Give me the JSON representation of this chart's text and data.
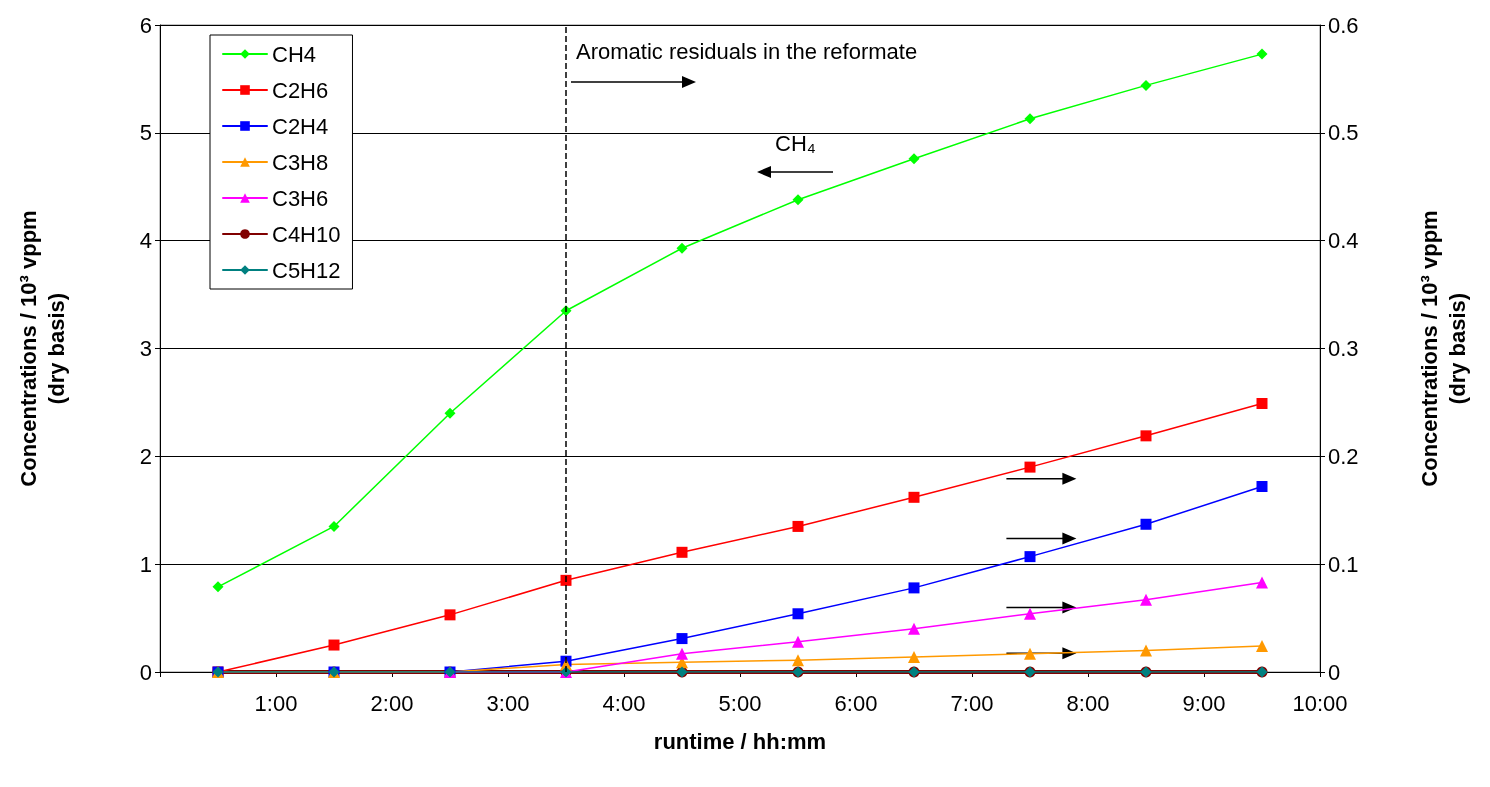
{
  "chart_data": {
    "type": "line",
    "xlabel": "runtime / hh:mm",
    "ylabel": "Concentrations / 10³ vppm\n(dry basis)",
    "y2label": "Concentrations / 10³ vppm\n(dry basis)",
    "x": [
      0.5,
      1.5,
      2.5,
      3.5,
      4.5,
      5.5,
      6.5,
      7.5,
      8.5,
      9.5
    ],
    "xlim": [
      0,
      10
    ],
    "xticks": [
      {
        "value": 0,
        "label": null
      },
      {
        "value": 1,
        "label": "1:00"
      },
      {
        "value": 2,
        "label": "2:00"
      },
      {
        "value": 3,
        "label": "3:00"
      },
      {
        "value": 4,
        "label": "4:00"
      },
      {
        "value": 5,
        "label": "5:00"
      },
      {
        "value": 6,
        "label": "6:00"
      },
      {
        "value": 7,
        "label": "7:00"
      },
      {
        "value": 8,
        "label": "8:00"
      },
      {
        "value": 9,
        "label": "9:00"
      },
      {
        "value": 10,
        "label": "10:00"
      }
    ],
    "ylim": [
      0,
      6
    ],
    "yticks": [
      0,
      1,
      2,
      3,
      4,
      5,
      6
    ],
    "y2lim": [
      0,
      0.6
    ],
    "y2ticks": [
      0,
      0.1,
      0.2,
      0.3,
      0.4,
      0.5,
      0.6
    ],
    "grid": "y",
    "legend": "top left",
    "line_style": "solid",
    "series": [
      {
        "name": "CH4",
        "color": "#00ff00",
        "marker": "diamond",
        "values": [
          0.79,
          1.35,
          2.4,
          3.35,
          3.93,
          4.38,
          4.76,
          5.13,
          5.44,
          5.73
        ]
      },
      {
        "name": "C2H6",
        "color": "#ff0000",
        "marker": "square",
        "axis": "y2",
        "values": [
          0,
          0.025,
          0.053,
          0.085,
          0.111,
          0.135,
          0.162,
          0.19,
          0.219,
          0.249
        ]
      },
      {
        "name": "C2H4",
        "color": "#0000ff",
        "marker": "square",
        "axis": "y2",
        "values": [
          0,
          0,
          0,
          0.01,
          0.031,
          0.054,
          0.078,
          0.107,
          0.137,
          0.172
        ]
      },
      {
        "name": "C3H8",
        "color": "#ff9900",
        "marker": "triangle",
        "axis": "y2",
        "values": [
          0,
          0,
          0,
          0.007,
          0.009,
          0.011,
          0.014,
          0.017,
          0.02,
          0.024
        ]
      },
      {
        "name": "C3H6",
        "color": "#ff00ff",
        "marker": "triangle",
        "axis": "y2",
        "values": [
          null,
          null,
          0,
          0,
          0.017,
          0.028,
          0.04,
          0.054,
          0.067,
          0.083
        ]
      },
      {
        "name": "C4H10",
        "color": "#800000",
        "marker": "circle",
        "axis": "y2",
        "values": [
          0,
          0,
          0,
          0,
          0,
          0,
          0,
          0,
          0,
          0
        ]
      },
      {
        "name": "C5H12",
        "color": "#008080",
        "marker": "diamond",
        "axis": "y2",
        "values": [
          0,
          0,
          0,
          0,
          0,
          0,
          0,
          0,
          0,
          0
        ]
      }
    ],
    "ref_lines": [
      {
        "axis": "x",
        "value": 3.5,
        "label": "Aromatic residuals in the reformate",
        "line_style": "dashed",
        "color": "#000000"
      }
    ],
    "annotations": [
      "CH₄"
    ]
  }
}
